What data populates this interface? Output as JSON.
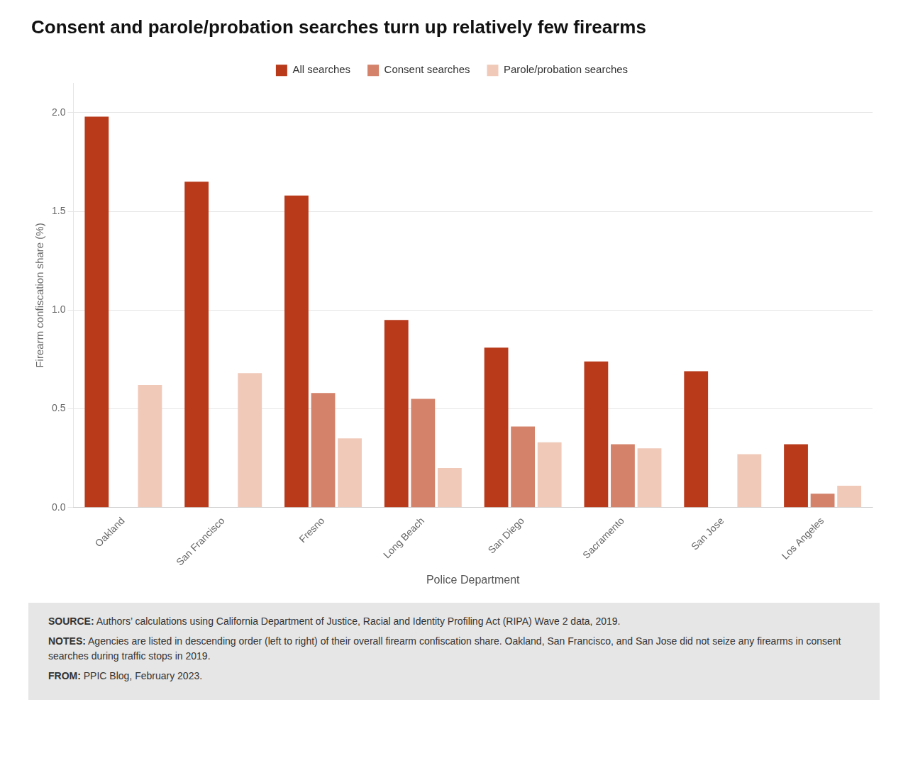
{
  "chart_data": {
    "type": "bar",
    "title": "Consent and parole/probation searches turn up relatively few firearms",
    "categories": [
      "Oakland",
      "San Francisco",
      "Fresno",
      "Long Beach",
      "San Diego",
      "Sacramento",
      "San Jose",
      "Los Angeles"
    ],
    "series": [
      {
        "name": "All searches",
        "color": "#b83a1b",
        "values": [
          1.98,
          1.65,
          1.58,
          0.95,
          0.81,
          0.74,
          0.69,
          0.32
        ]
      },
      {
        "name": "Consent searches",
        "color": "#d4826a",
        "values": [
          0.0,
          0.0,
          0.58,
          0.55,
          0.41,
          0.32,
          0.0,
          0.07
        ]
      },
      {
        "name": "Parole/probation searches",
        "color": "#f0c9b8",
        "values": [
          0.62,
          0.68,
          0.35,
          0.2,
          0.33,
          0.3,
          0.27,
          0.11
        ]
      }
    ],
    "xlabel": "Police Department",
    "ylabel": "Firearm confiscation share (%)",
    "ylim": [
      0.0,
      2.15
    ],
    "yticks": [
      {
        "value": 0,
        "label": "0.0"
      },
      0.5,
      {
        "value": 1,
        "label": "1.0"
      },
      1.5,
      {
        "value": 2,
        "label": "2.0"
      }
    ],
    "grid": true,
    "legend": "top",
    "annotations": [
      "SOURCE: Authors’ calculations using California Department of Justice, Racial and Identity Profiling Act (RIPA) Wave 2 data, 2019.",
      "NOTES: Agencies are listed in descending order (left to right) of their overall firearm confiscation share. Oakland, San Francisco, and San Jose did not seize any firearms in consent searches during traffic stops in 2019.",
      "FROM: PPIC Blog, February 2023."
    ]
  }
}
